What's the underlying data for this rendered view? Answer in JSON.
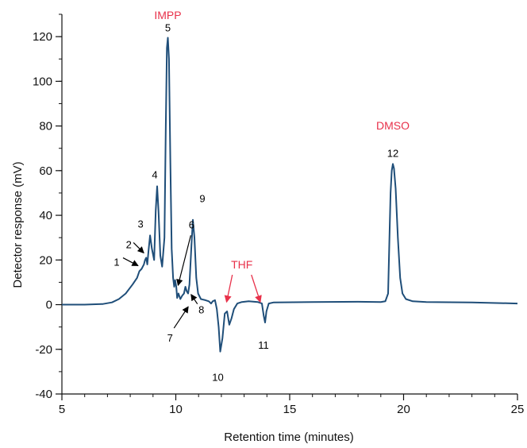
{
  "chart_data": {
    "type": "line",
    "xlabel": "Retention time (minutes)",
    "ylabel": "Detector response (mV)",
    "xlim": [
      5,
      25
    ],
    "ylim": [
      -40,
      130
    ],
    "x_ticks": [
      5,
      10,
      15,
      20,
      25
    ],
    "y_ticks": [
      -40,
      -20,
      0,
      20,
      40,
      60,
      80,
      100,
      120
    ],
    "x_minor_step": 1,
    "y_minor_step": 10,
    "grid": false,
    "line_color": "#1f4e79",
    "annotation_color": "#e8314a",
    "peak_label_color": "#000000",
    "series": [
      {
        "points": [
          [
            5.0,
            0
          ],
          [
            6.0,
            0
          ],
          [
            6.8,
            0.3
          ],
          [
            7.2,
            1.0
          ],
          [
            7.5,
            2.5
          ],
          [
            7.8,
            5
          ],
          [
            8.1,
            9
          ],
          [
            8.3,
            12
          ],
          [
            8.4,
            15
          ],
          [
            8.5,
            16
          ],
          [
            8.6,
            18
          ],
          [
            8.65,
            20
          ],
          [
            8.7,
            21
          ],
          [
            8.75,
            18
          ],
          [
            8.8,
            24
          ],
          [
            8.87,
            31
          ],
          [
            8.95,
            25
          ],
          [
            9.05,
            20
          ],
          [
            9.12,
            42
          ],
          [
            9.18,
            53
          ],
          [
            9.24,
            42
          ],
          [
            9.32,
            22
          ],
          [
            9.4,
            17
          ],
          [
            9.5,
            30
          ],
          [
            9.56,
            80
          ],
          [
            9.61,
            115
          ],
          [
            9.65,
            119.5
          ],
          [
            9.7,
            110
          ],
          [
            9.76,
            65
          ],
          [
            9.82,
            25
          ],
          [
            9.88,
            12
          ],
          [
            9.93,
            8
          ],
          [
            9.97,
            11
          ],
          [
            10.02,
            8
          ],
          [
            10.06,
            3
          ],
          [
            10.12,
            5
          ],
          [
            10.2,
            2.5
          ],
          [
            10.28,
            4
          ],
          [
            10.36,
            5
          ],
          [
            10.42,
            8
          ],
          [
            10.48,
            6
          ],
          [
            10.54,
            5
          ],
          [
            10.6,
            9
          ],
          [
            10.68,
            25
          ],
          [
            10.75,
            38
          ],
          [
            10.82,
            30
          ],
          [
            10.9,
            12
          ],
          [
            10.98,
            5
          ],
          [
            11.1,
            2.5
          ],
          [
            11.3,
            2
          ],
          [
            11.45,
            1.5
          ],
          [
            11.55,
            0.5
          ],
          [
            11.62,
            1.5
          ],
          [
            11.72,
            2
          ],
          [
            11.8,
            -2
          ],
          [
            11.88,
            -10
          ],
          [
            11.95,
            -21
          ],
          [
            12.05,
            -15
          ],
          [
            12.15,
            -4
          ],
          [
            12.25,
            -3
          ],
          [
            12.35,
            -9
          ],
          [
            12.45,
            -6
          ],
          [
            12.55,
            -2
          ],
          [
            12.7,
            0.5
          ],
          [
            12.9,
            1.2
          ],
          [
            13.2,
            1.5
          ],
          [
            13.6,
            1.2
          ],
          [
            13.78,
            0.5
          ],
          [
            13.86,
            -5
          ],
          [
            13.92,
            -8
          ],
          [
            13.98,
            -3
          ],
          [
            14.08,
            0.5
          ],
          [
            14.3,
            1
          ],
          [
            16.0,
            1.2
          ],
          [
            18.0,
            1.3
          ],
          [
            19.0,
            1.2
          ],
          [
            19.2,
            1.5
          ],
          [
            19.32,
            5
          ],
          [
            19.38,
            30
          ],
          [
            19.43,
            50
          ],
          [
            19.48,
            60
          ],
          [
            19.53,
            63
          ],
          [
            19.58,
            61
          ],
          [
            19.65,
            52
          ],
          [
            19.75,
            30
          ],
          [
            19.85,
            12
          ],
          [
            19.95,
            5
          ],
          [
            20.1,
            2.5
          ],
          [
            20.4,
            1.5
          ],
          [
            21.0,
            1.2
          ],
          [
            23.0,
            1
          ],
          [
            25.0,
            0.5
          ]
        ]
      }
    ],
    "peak_labels": [
      {
        "text": "1",
        "x": 8.45,
        "y": 16
      },
      {
        "text": "2",
        "x": 8.7,
        "y": 21
      },
      {
        "text": "3",
        "x": 8.87,
        "y": 31
      },
      {
        "text": "4",
        "x": 9.18,
        "y": 53
      },
      {
        "text": "5",
        "x": 9.65,
        "y": 119.5
      },
      {
        "text": "6",
        "x": 10.1,
        "y": 4
      },
      {
        "text": "7",
        "x": 10.2,
        "y": 3
      },
      {
        "text": "8",
        "x": 10.6,
        "y": 6
      },
      {
        "text": "9",
        "x": 10.75,
        "y": 38
      },
      {
        "text": "10",
        "x": 11.95,
        "y": -21
      },
      {
        "text": "11",
        "x": 13.92,
        "y": -8
      },
      {
        "text": "12",
        "x": 19.53,
        "y": 63
      }
    ],
    "annotations": [
      {
        "text": "IMPP",
        "x": 9.65
      },
      {
        "text": "THF",
        "x": 12.9
      },
      {
        "text": "DMSO",
        "x": 19.53
      }
    ]
  }
}
